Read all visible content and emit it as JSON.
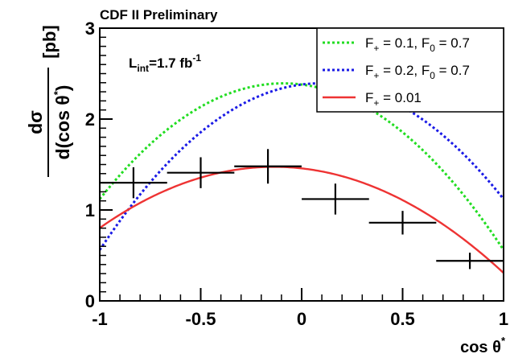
{
  "chart_data": {
    "type": "line",
    "header": "CDF II Preliminary",
    "luminosity": {
      "main": "L",
      "sub": "int",
      "value": "=1.7 fb",
      "sup": "-1"
    },
    "xlabel": {
      "main": "cos θ",
      "sup": "*"
    },
    "ylabel": {
      "numerator": "dσ",
      "denominator": "d(cos θ",
      "denominator_sup": "*",
      "denominator_close": ")",
      "unit": "[pb]"
    },
    "xlim": [
      -1,
      1
    ],
    "ylim": [
      0,
      3
    ],
    "x_ticks": [
      -1,
      -0.5,
      0,
      0.5,
      1
    ],
    "x_tick_labels": [
      "-1",
      "-0.5",
      "0",
      "0.5",
      "1"
    ],
    "y_ticks": [
      0,
      1,
      2,
      3
    ],
    "y_tick_labels": [
      "0",
      "1",
      "2",
      "3"
    ],
    "legend_position": "top-right",
    "data_points": {
      "color": "#000000",
      "x": [
        -0.833,
        -0.5,
        -0.167,
        0.167,
        0.5,
        0.833
      ],
      "x_halfwidth": 0.1667,
      "y": [
        1.3,
        1.41,
        1.48,
        1.12,
        0.86,
        0.44
      ],
      "yerr": [
        0.17,
        0.17,
        0.19,
        0.17,
        0.13,
        0.09
      ]
    },
    "series": [
      {
        "legend": {
          "main": "F",
          "sub1": "+",
          "mid": " = 0.1, F",
          "sub2": "0",
          "tail": " = 0.7"
        },
        "color": "#22dd22",
        "dash": "dotted",
        "model": {
          "F_plus": 0.1,
          "F_zero": 0.7,
          "scale": 1.4
        }
      },
      {
        "legend": {
          "main": "F",
          "sub1": "+",
          "mid": " = 0.2, F",
          "sub2": "0",
          "tail": " = 0.7"
        },
        "color": "#1a1ae6",
        "dash": "dotted",
        "model": {
          "F_plus": 0.2,
          "F_zero": 0.7,
          "scale": 1.4
        }
      },
      {
        "legend": {
          "main": "F",
          "sub1": "+",
          "mid": " = 0.01",
          "sub2": "",
          "tail": ""
        },
        "color": "#ee3333",
        "dash": "solid",
        "model": {
          "a": 1.4575,
          "b": -0.2475,
          "c": -0.9025
        }
      }
    ]
  }
}
